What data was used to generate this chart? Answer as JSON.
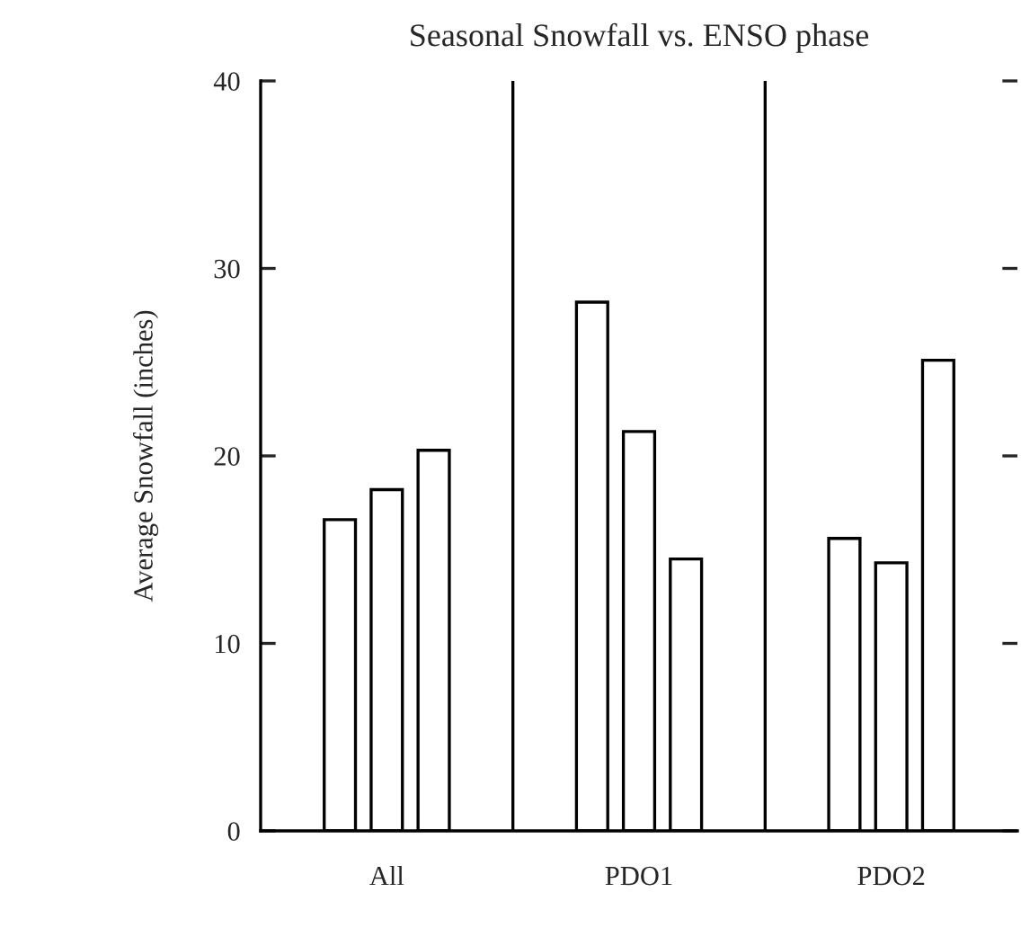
{
  "chart_data": {
    "type": "bar",
    "title": "Seasonal Snowfall vs. ENSO phase",
    "ylabel": "Average Snowfall (inches)",
    "categories": [
      "All",
      "PDO1",
      "PDO2"
    ],
    "series": [
      {
        "color": "#ffffff",
        "values": [
          16.6,
          28.2,
          15.6
        ]
      },
      {
        "color": "#ffffff",
        "values": [
          18.2,
          21.3,
          14.3
        ]
      },
      {
        "color": "#ffffff",
        "values": [
          20.3,
          14.5,
          25.1
        ]
      }
    ],
    "ylim": [
      0,
      40
    ],
    "yticks": [
      0,
      10,
      20,
      30,
      40
    ],
    "grid": "x"
  }
}
